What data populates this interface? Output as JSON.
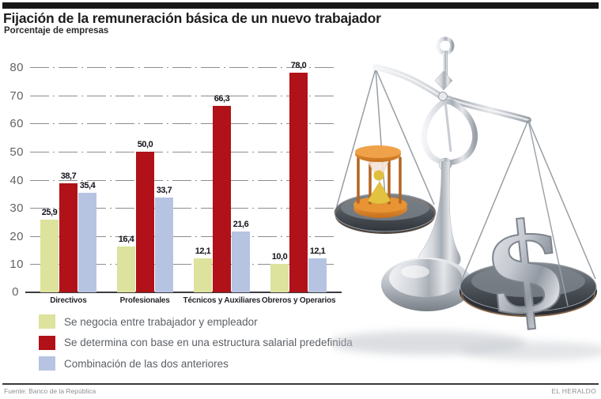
{
  "header": {
    "title": "Fijación de la remuneración básica de un nuevo trabajador",
    "subtitle": "Porcentaje de empresas"
  },
  "chart_data": {
    "type": "bar",
    "title": "Fijación de la remuneración básica de un nuevo trabajador",
    "subtitle": "Porcentaje de empresas",
    "categories": [
      "Directivos",
      "Profesionales",
      "Técnicos y Auxiliares",
      "Obreros y Operarios"
    ],
    "series": [
      {
        "name": "Se negocia entre trabajador y empleador",
        "color": "#dde29c",
        "values": [
          25.9,
          16.4,
          12.1,
          10.0
        ],
        "labels": [
          "25,9",
          "16,4",
          "12,1",
          "10,0"
        ]
      },
      {
        "name": "Se determina con base en una estructura salarial predefinida",
        "color": "#b11118",
        "values": [
          38.7,
          50.0,
          66.3,
          78.0
        ],
        "labels": [
          "38,7",
          "50,0",
          "66,3",
          "78,0"
        ]
      },
      {
        "name": "Combinación de las dos anteriores",
        "color": "#b6c4e2",
        "values": [
          35.4,
          33.7,
          21.6,
          12.1
        ],
        "labels": [
          "35,4",
          "33,7",
          "21,6",
          "12,1"
        ]
      }
    ],
    "xlabel": "",
    "ylabel": "",
    "ylim": [
      0,
      80
    ],
    "yticks": [
      0,
      10,
      20,
      30,
      40,
      50,
      60,
      70,
      80
    ],
    "grid": "horizontal dash-dot",
    "legend_position": "bottom-left"
  },
  "illustration": {
    "name": "balance-scale-hourglass-vs-dollar",
    "dollar_symbol": "$"
  },
  "footer": {
    "source": "Fuente: Banco de la República",
    "credit": "EL HERALDO"
  }
}
